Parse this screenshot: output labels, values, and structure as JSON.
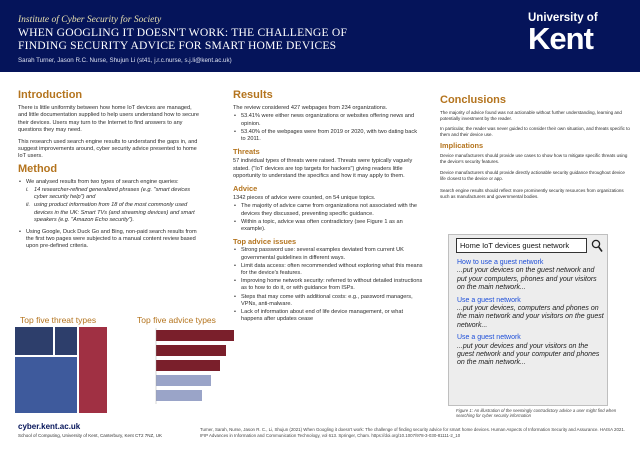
{
  "header": {
    "institute": "Institute of Cyber Security for Society",
    "title_line1": "WHEN GOOGLING IT DOESN'T WORK: THE CHALLENGE OF",
    "title_line2": "FINDING SECURITY ADVICE FOR SMART HOME DEVICES",
    "authors": "Sarah Turner, Jason R.C. Nurse, Shujun Li (st41, j.r.c.nurse, s.j.li@kent.ac.uk)",
    "logo_line1": "University of",
    "logo_line2": "Kent"
  },
  "intro": {
    "heading": "Introduction",
    "p1": "There is little uniformity between how home IoT devices are managed, and little documentation supplied to help users understand how to secure their devices. Users may turn to the Internet to find answers to any questions they may need.",
    "p2": "This research used search engine results to understand the gaps in, and suggest improvements around, cyber security advice presented to home IoT users."
  },
  "method": {
    "heading": "Method",
    "intro": "We analysed results from two types of search engine queries:",
    "i_label": "i.",
    "i_text": "14 researcher-refined generalized phrases (e.g. \"smart devices cyber security help\") and",
    "ii_label": "ii.",
    "ii_text": "using product information from 18 of the most commonly used devices in the UK: Smart TVs (and streaming devices) and smart speakers (e.g. \"Amazon Echo security\").",
    "bullet2": "Using Google, Duck Duck Go and Bing, non-paid search results from the first two pages were subjected to a manual content review based upon pre-defined criteria."
  },
  "charts": {
    "threat_label": "Top five threat types",
    "advice_label": "Top five advice types",
    "threat_colors": [
      "#2d3e6b",
      "#a03043",
      "#3e5a9c"
    ],
    "advice_colors": [
      "#7a1f2b",
      "#7a1f2b",
      "#7a1f2b",
      "#9aa4c8",
      "#9aa4c8"
    ]
  },
  "results": {
    "heading": "Results",
    "p1": "The review considered 427 webpages from 234 organizations.",
    "b1": "53.41% were either news organizations or websites offering news and opinion.",
    "b2": "53.40% of the webpages were from 2019 or 2020, with two dating back to 2011.",
    "threats_h": "Threats",
    "threats_p": "57 individual types of threats were raised. Threats were typically vaguely stated. (\"IoT devices are top targets for hackers\") giving readers little opportunity to understand the specifics and how it may apply to them.",
    "advice_h": "Advice",
    "advice_p": "1342 pieces of advice were counted, on 54 unique topics.",
    "advice_b1": "The majority of advice came from organizations not associated with the devices they discussed, preventing specific guidance.",
    "advice_b2": "Within a topic, advice was often contradictory (see Figure 1 as an example).",
    "top_h": "Top advice issues",
    "top_b1": "Strong password use: several examples deviated from current UK governmental guidelines in different ways.",
    "top_b2": "Limit data access: often recommended without exploring what this means for the device's features.",
    "top_b3": "Improving home network security: referred to without detailed instructions as to how to do it, or with guidance from ISPs.",
    "top_b4": "Steps that may come with additional costs: e.g., password managers, VPNs, anti-malware.",
    "top_b5": "Lack of information about end of life device management, or what happens after updates cease"
  },
  "conclusions": {
    "heading": "Conclusions",
    "p1": "The majority of advice found was not actionable without further understanding, learning and potentially investment by the reader.",
    "p2": "In particular, the reader was never guided to consider their own situation, and threats specific to them and their device use.",
    "impl_h": "Implications",
    "i1": "Device manufacturers should provide use cases to show how to mitigate specific threats using the device's security features.",
    "i2": "Device manufacturers should provide directly actionable security guidance throughout device life closest to the device or app.",
    "i3": "Search engine results should reflect more prominently security resources from organizations such as manufacturers and governmental bodies."
  },
  "figure": {
    "search_text": "Home IoT devices guest network",
    "r1_link": "How to use a guest network",
    "r1_text": "...put your devices on the guest network and put your computers, phones and your visitors on the main network...",
    "r2_link": "Use a guest network",
    "r2_text": "...put your devices, computers and phones on the main network and your visitors on the guest network...",
    "r3_link": "Use a guest network",
    "r3_text": "...put your devices and your visitors on the guest network and your computer and phones on the main network...",
    "caption": "Figure 1: An illustration of the seemingly contradictory advice a user might find when searching for cyber security information"
  },
  "footer": {
    "url": "cyber.kent.ac.uk",
    "affiliation": "School of Computing, University of Kent, Canterbury, Kent CT2 7NZ, UK",
    "reference": "Turner, Sarah, Nurse, Jason R. C., Li, Shujun (2021) When Googling it doesn't work: The challenge of finding security advice for smart home devices. Human Aspects of Information Security and Assurance. HAISA 2021. IFIP Advances in Information and Communication Technology, vol 613. Springer, Cham. https://doi.org/10.1007/978-3-030-81111-2_10"
  }
}
